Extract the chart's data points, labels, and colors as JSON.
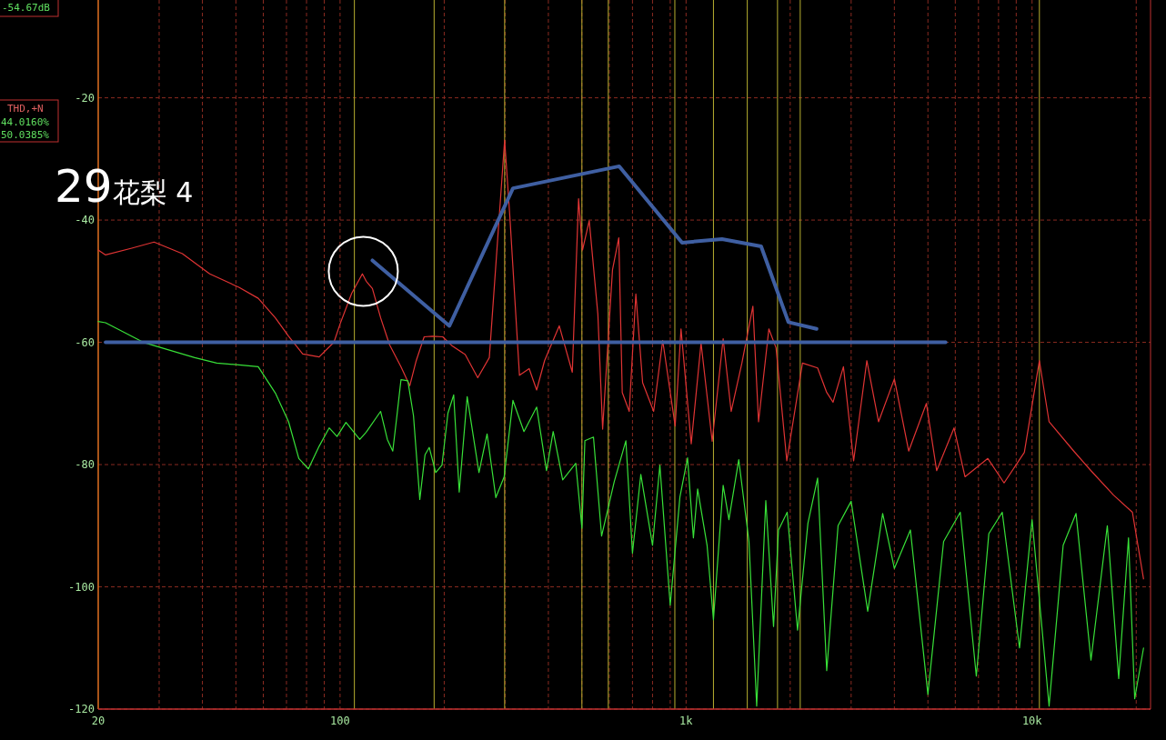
{
  "chart_data": {
    "type": "line",
    "log": "x",
    "xlim": [
      20,
      22000
    ],
    "ylim": [
      -120,
      -4
    ],
    "xticks": [
      20,
      100,
      {
        "value": 1000,
        "label": "1k"
      },
      {
        "value": 10000,
        "label": "10k"
      }
    ],
    "yticks": [
      -20,
      -40,
      -60,
      -80,
      -100,
      -120
    ],
    "grid": true,
    "ref_lines": [
      {
        "axis": "x",
        "value": 110,
        "color": "#b8b030"
      },
      {
        "axis": "x",
        "value": 187,
        "color": "#b8b030"
      },
      {
        "axis": "x",
        "value": 299,
        "color": "#b8b030"
      },
      {
        "axis": "x",
        "value": 500,
        "color": "#b8b030"
      },
      {
        "axis": "x",
        "value": 596,
        "color": "#b8b030"
      },
      {
        "axis": "x",
        "value": 928,
        "color": "#b8b030"
      },
      {
        "axis": "x",
        "value": 1200,
        "color": "#b8b030"
      },
      {
        "axis": "x",
        "value": 1503,
        "color": "#b8b030"
      },
      {
        "axis": "x",
        "value": 1838,
        "color": "#b8b030"
      },
      {
        "axis": "x",
        "value": 2138,
        "color": "#b8b030"
      },
      {
        "axis": "x",
        "value": 10500,
        "color": "#b8b030"
      }
    ],
    "annotations": [
      "-54.67dB",
      "THD,+N",
      "44.0160%",
      "50.0385%",
      "29",
      "花梨 4"
    ],
    "series": [
      {
        "color": "#e03434",
        "x": [
          20,
          21,
          25,
          29,
          35,
          42,
          51,
          58,
          65,
          71,
          78,
          87,
          96,
          100,
          108,
          116,
          119,
          124,
          131,
          139,
          150,
          159,
          166,
          175,
          185,
          198,
          210,
          230,
          250,
          270,
          299,
          310,
          330,
          352,
          370,
          390,
          430,
          469,
          489,
          502,
          525,
          556,
          574,
          591,
          613,
          639,
          654,
          685,
          716,
          749,
          806,
          856,
          930,
          967,
          1035,
          1105,
          1190,
          1280,
          1350,
          1450,
          1560,
          1620,
          1735,
          1820,
          1955,
          2170,
          2400,
          2550,
          2660,
          2850,
          3050,
          3330,
          3600,
          4000,
          4400,
          4950,
          5300,
          5950,
          6400,
          7450,
          8300,
          9500,
          10500,
          11200,
          13200,
          14800,
          17200,
          19500,
          21000
        ],
        "values": [
          -44.9,
          -45.7,
          -44.6,
          -43.6,
          -45.5,
          -48.8,
          -51,
          -52.8,
          -56,
          -59,
          -61.9,
          -62.4,
          -60,
          -57,
          -52,
          -48.8,
          -50,
          -51.2,
          -56,
          -60.4,
          -64,
          -67.1,
          -63,
          -59.1,
          -59,
          -59.1,
          -60.5,
          -62,
          -65.8,
          -62.5,
          -26.9,
          -40,
          -65.4,
          -64.3,
          -67.8,
          -63,
          -57.3,
          -64.9,
          -36.5,
          -44.9,
          -40.1,
          -55.4,
          -74.2,
          -62.5,
          -48.1,
          -42.9,
          -68.2,
          -71.3,
          -52.1,
          -66.6,
          -71.3,
          -59.7,
          -73.7,
          -57.8,
          -76.6,
          -60.1,
          -76.2,
          -59.4,
          -71.3,
          -63.4,
          -54.1,
          -73,
          -57.8,
          -60.9,
          -79.4,
          -63.4,
          -64.2,
          -68.2,
          -69.8,
          -64,
          -79.4,
          -63,
          -73,
          -66,
          -77.8,
          -70,
          -81,
          -74,
          -82,
          -79,
          -83,
          -78,
          -63,
          -73,
          -77.8,
          -81,
          -85,
          -87.8,
          -98.7
        ]
      },
      {
        "color": "#38e038",
        "x": [
          20,
          21,
          27,
          38,
          44,
          51,
          58,
          65,
          71,
          76,
          81,
          87,
          93,
          98,
          104,
          114,
          119,
          131,
          137,
          142,
          146,
          150,
          157,
          163,
          170,
          176,
          181,
          189,
          197,
          205,
          213,
          221,
          233,
          252,
          266,
          282,
          298,
          316,
          340,
          370,
          395,
          413,
          440,
          480,
          500,
          510,
          540,
          570,
          620,
          670,
          700,
          740,
          800,
          840,
          900,
          960,
          1010,
          1050,
          1080,
          1150,
          1200,
          1280,
          1330,
          1420,
          1520,
          1600,
          1700,
          1790,
          1850,
          1960,
          2100,
          2250,
          2400,
          2550,
          2750,
          3000,
          3350,
          3700,
          4000,
          4450,
          5000,
          5550,
          6200,
          6900,
          7500,
          8200,
          9200,
          10000,
          11200,
          12300,
          13400,
          14800,
          16500,
          17800,
          19000,
          19800,
          21000
        ],
        "values": [
          -56.6,
          -56.8,
          -60,
          -62.5,
          -63.4,
          -63.7,
          -64,
          -68.3,
          -73,
          -79,
          -80.7,
          -77,
          -74,
          -75.4,
          -73.1,
          -75.9,
          -74.7,
          -71.3,
          -75.9,
          -77.8,
          -72,
          -66.1,
          -66.3,
          -72,
          -85.7,
          -78.4,
          -77.2,
          -81.3,
          -80.1,
          -71.6,
          -68.6,
          -84.5,
          -68.9,
          -81.3,
          -75,
          -85.4,
          -82,
          -69.5,
          -74.6,
          -70.6,
          -81,
          -74.6,
          -82.5,
          -79.8,
          -90.4,
          -76.1,
          -75.5,
          -91.7,
          -82.8,
          -76.1,
          -94.5,
          -81.6,
          -93.2,
          -80.1,
          -103,
          -85.3,
          -78.9,
          -92,
          -84,
          -93.2,
          -105.4,
          -83.4,
          -89,
          -79.2,
          -92.6,
          -119.5,
          -85.9,
          -106.5,
          -90.7,
          -87.8,
          -107.1,
          -89.6,
          -82.2,
          -113.7,
          -90,
          -86,
          -104,
          -88,
          -97,
          -90.7,
          -117.6,
          -92.6,
          -87.8,
          -114.6,
          -91.3,
          -87.8,
          -110,
          -89,
          -119.5,
          -93.2,
          -88,
          -112,
          -90,
          -115,
          -92,
          -118.3,
          -110
        ]
      },
      {
        "color": "#3f5fa2",
        "x": [
          124,
          207,
          316,
          641,
          974,
          1270,
          1648,
          1976,
          2383
        ],
        "values": [
          -46.6,
          -57.3,
          -34.8,
          -31.2,
          -43.7,
          -43.1,
          -44.3,
          -56.7,
          -57.8
        ]
      },
      {
        "color": "#3f5fa2",
        "x": [
          21,
          5625
        ],
        "values": [
          -60,
          -60
        ]
      }
    ]
  }
}
